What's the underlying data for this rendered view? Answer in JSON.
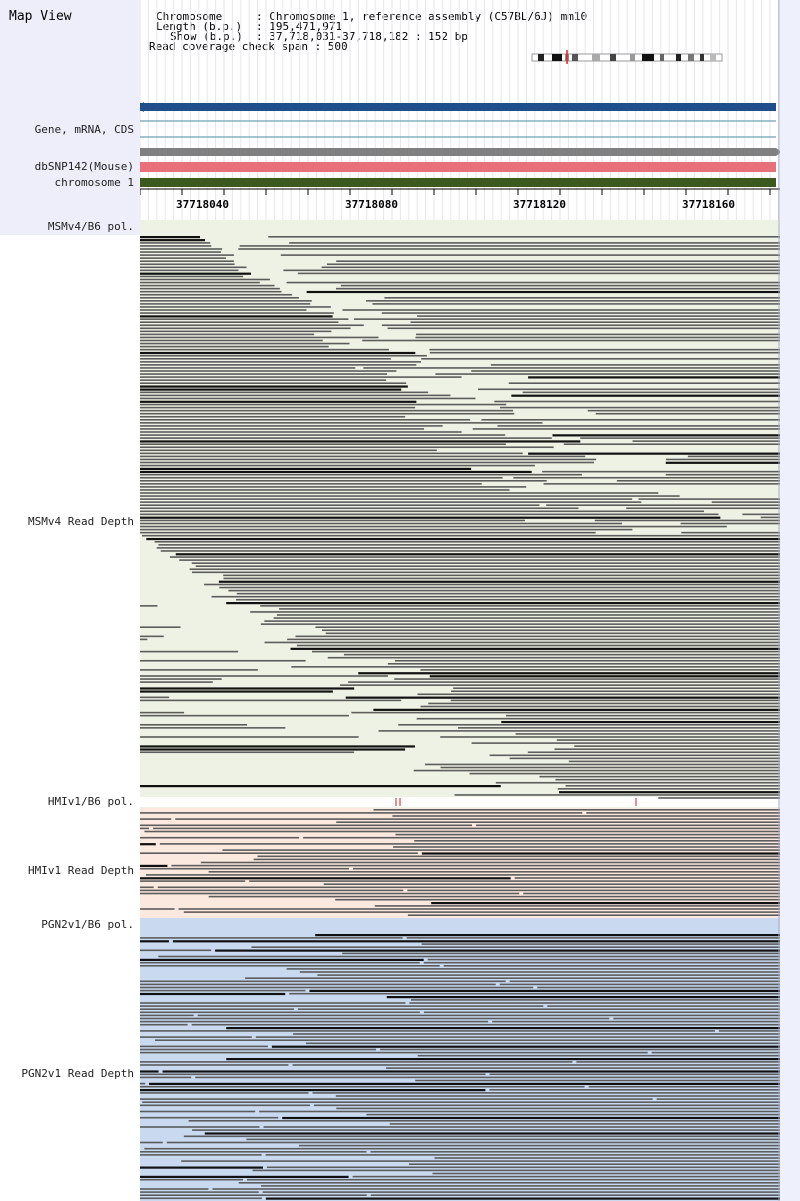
{
  "header": {
    "title": "Map View",
    "chromosome_key": "Chromosome",
    "chromosome_value": ": Chromosome 1, reference assembly (C57BL/6J) mm10",
    "length_key": "Length (b.p.)",
    "length_value": ": 195,471,971",
    "show_key": "Show (b.p.)",
    "show_value": ": 37,718,031-37,718,182 : 152 bp",
    "coverage": "Read coverage check span : 500"
  },
  "tracks": {
    "gene": "Gene, mRNA, CDS",
    "dbsnp": "dbSNP142(Mouse)",
    "chromosome": "chromosome 1",
    "msm_pol": "MSMv4/B6 pol.",
    "msm_depth": "MSMv4 Read Depth",
    "hmi_pol": "HMIv1/B6 pol.",
    "hmi_depth": "HMIv1 Read Depth",
    "pgn_pol": "PGN2v1/B6 pol.",
    "pgn_depth": "PGN2v1 Read Depth"
  },
  "ruler": {
    "ticks": [
      "37718040",
      "37718080",
      "37718120",
      "37718160"
    ]
  },
  "colors": {
    "gene_bar": "#1f4e8a",
    "snp_bar": "#e8707a",
    "chrom_bar": "#3c5a1e",
    "msm_bg": "#eef2e4",
    "hmi_bg": "#fbe9df",
    "pgn_bg": "#c8d9f0",
    "read": "#5c5c5c"
  }
}
